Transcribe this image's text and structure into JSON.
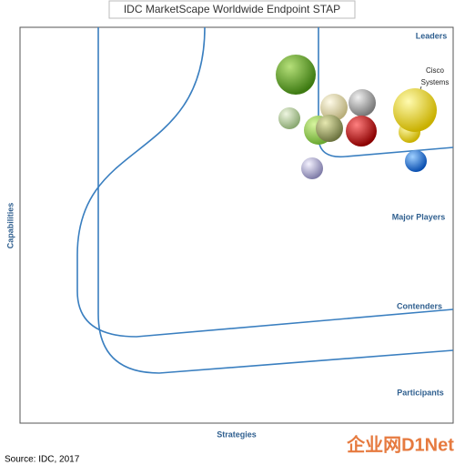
{
  "title": "IDC MarketScape Worldwide Endpoint STAP",
  "zones": [
    "Leaders",
    "Major Players",
    "Contenders",
    "Participants"
  ],
  "y_axis_label": "Capabilities",
  "x_axis_label": "Strategies",
  "vendor_label": [
    "Cisco",
    "Systems"
  ],
  "source": "Source: IDC, 2017",
  "watermark": "企业网D1Net"
}
